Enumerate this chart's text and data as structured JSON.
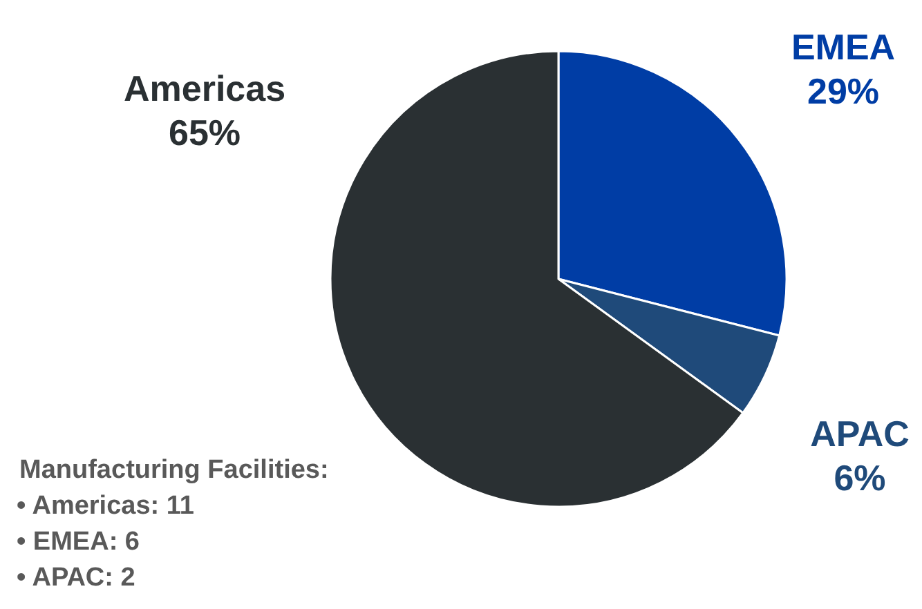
{
  "chart_data": {
    "type": "pie",
    "categories": [
      "EMEA",
      "APAC",
      "Americas"
    ],
    "values": [
      29,
      6,
      65
    ],
    "value_labels": [
      "29%",
      "6%",
      "65%"
    ],
    "colors": [
      "#003da5",
      "#1f4a7a",
      "#2a3033"
    ],
    "legend": false,
    "annotations": [
      "Manufacturing Facilities:",
      "• Americas: 11",
      "• EMEA: 6",
      "• APAC: 2"
    ]
  }
}
